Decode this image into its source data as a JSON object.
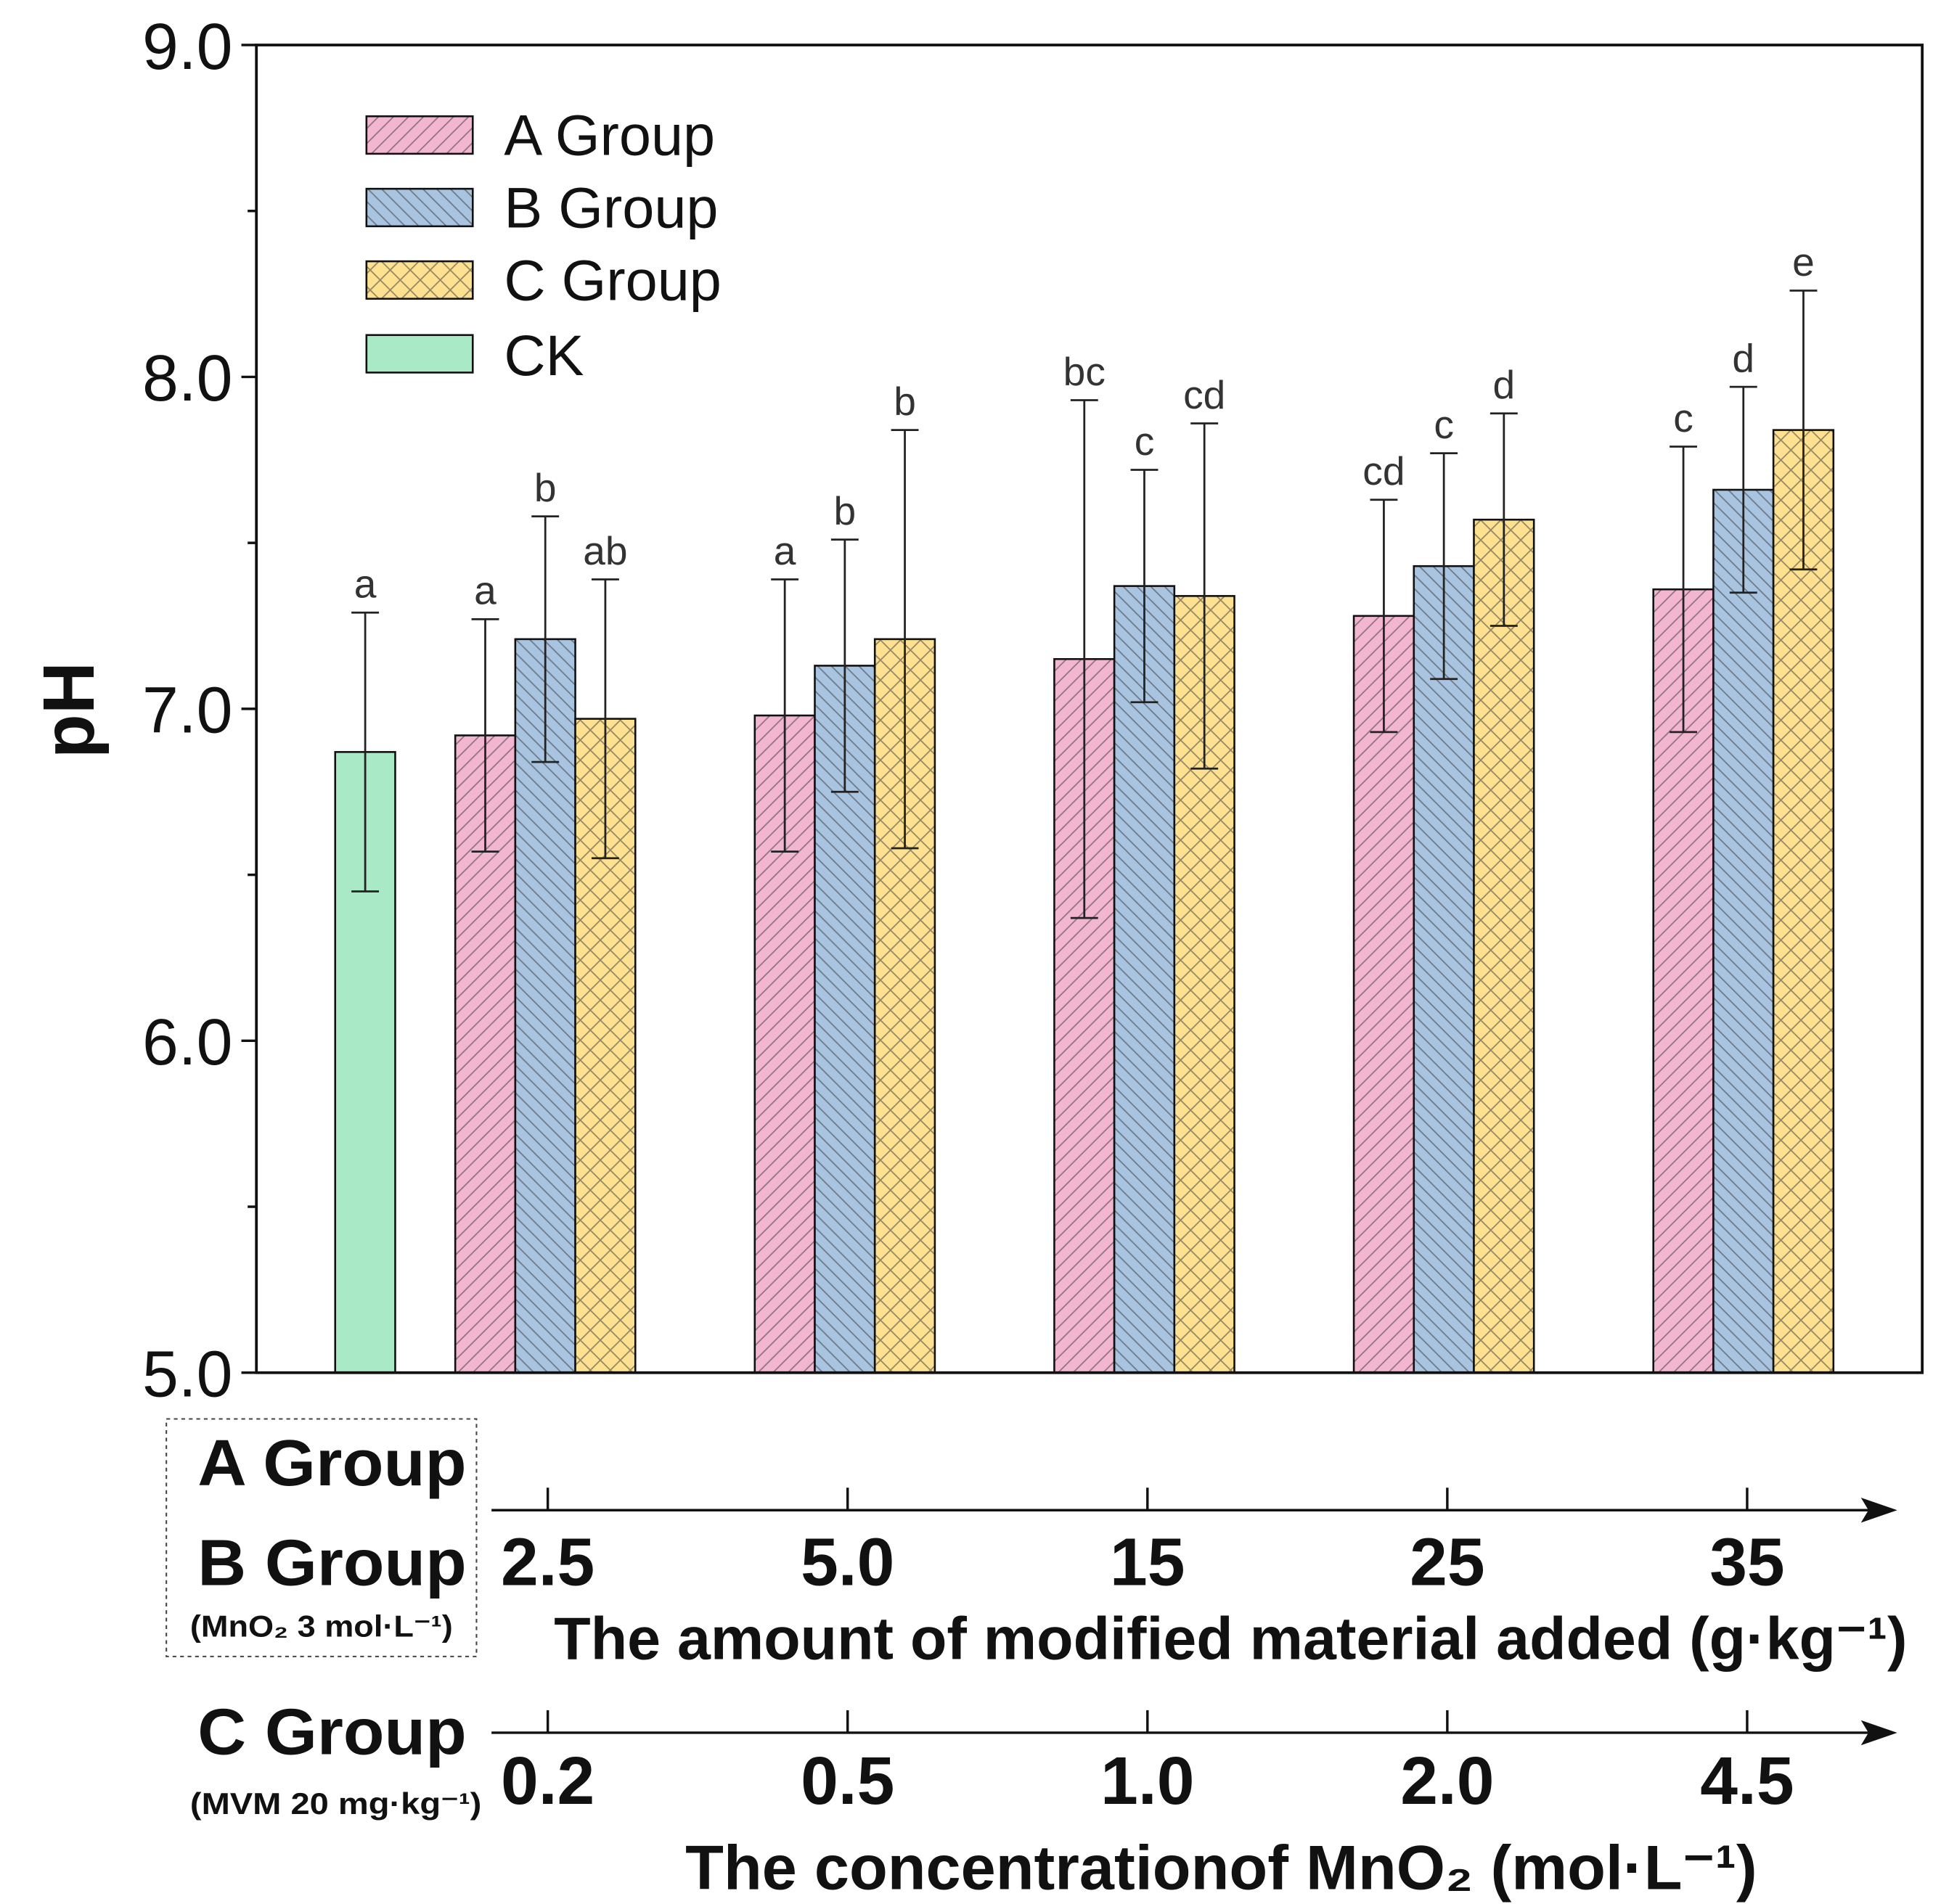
{
  "chart_data": {
    "type": "bar",
    "ylabel": "pH",
    "ylim": [
      5.0,
      9.0
    ],
    "ytick_labels": [
      "5.0",
      "6.0",
      "7.0",
      "8.0",
      "9.0"
    ],
    "categories": [
      "2.5",
      "5.0",
      "15",
      "25",
      "35"
    ],
    "xlabel": "The amount of modified material added (g·kg⁻¹)",
    "xaxis_groups": [
      "A Group",
      "B Group"
    ],
    "xaxis_note": "(MnO₂ 3 mol·L⁻¹)",
    "secondary_categories": [
      "0.2",
      "0.5",
      "1.0",
      "2.0",
      "4.5"
    ],
    "secondary_xlabel": "The concentrationof MnO₂ (mol·L⁻¹)",
    "secondary_group": "C Group",
    "secondary_note": "(MVM 20 mg·kg⁻¹)",
    "control": {
      "name": "CK",
      "value": 6.87,
      "error": 0.42,
      "letter": "a",
      "color": "#A9E9C6"
    },
    "series": [
      {
        "name": "A Group",
        "color": "#F3B6D1",
        "values": [
          6.92,
          6.98,
          7.15,
          7.28,
          7.36
        ],
        "errors": [
          0.35,
          0.41,
          0.78,
          0.35,
          0.43
        ],
        "letters": [
          "a",
          "a",
          "bc",
          "cd",
          "c"
        ]
      },
      {
        "name": "B Group",
        "color": "#A9C4E0",
        "values": [
          7.21,
          7.13,
          7.37,
          7.43,
          7.66
        ],
        "errors": [
          0.37,
          0.38,
          0.35,
          0.34,
          0.31
        ],
        "letters": [
          "b",
          "b",
          "c",
          "c",
          "d"
        ]
      },
      {
        "name": "C Group",
        "color": "#FDE190",
        "values": [
          6.97,
          7.21,
          7.34,
          7.57,
          7.84
        ],
        "errors": [
          0.42,
          0.63,
          0.52,
          0.32,
          0.42
        ],
        "letters": [
          "ab",
          "b",
          "cd",
          "d",
          "e"
        ]
      }
    ]
  }
}
